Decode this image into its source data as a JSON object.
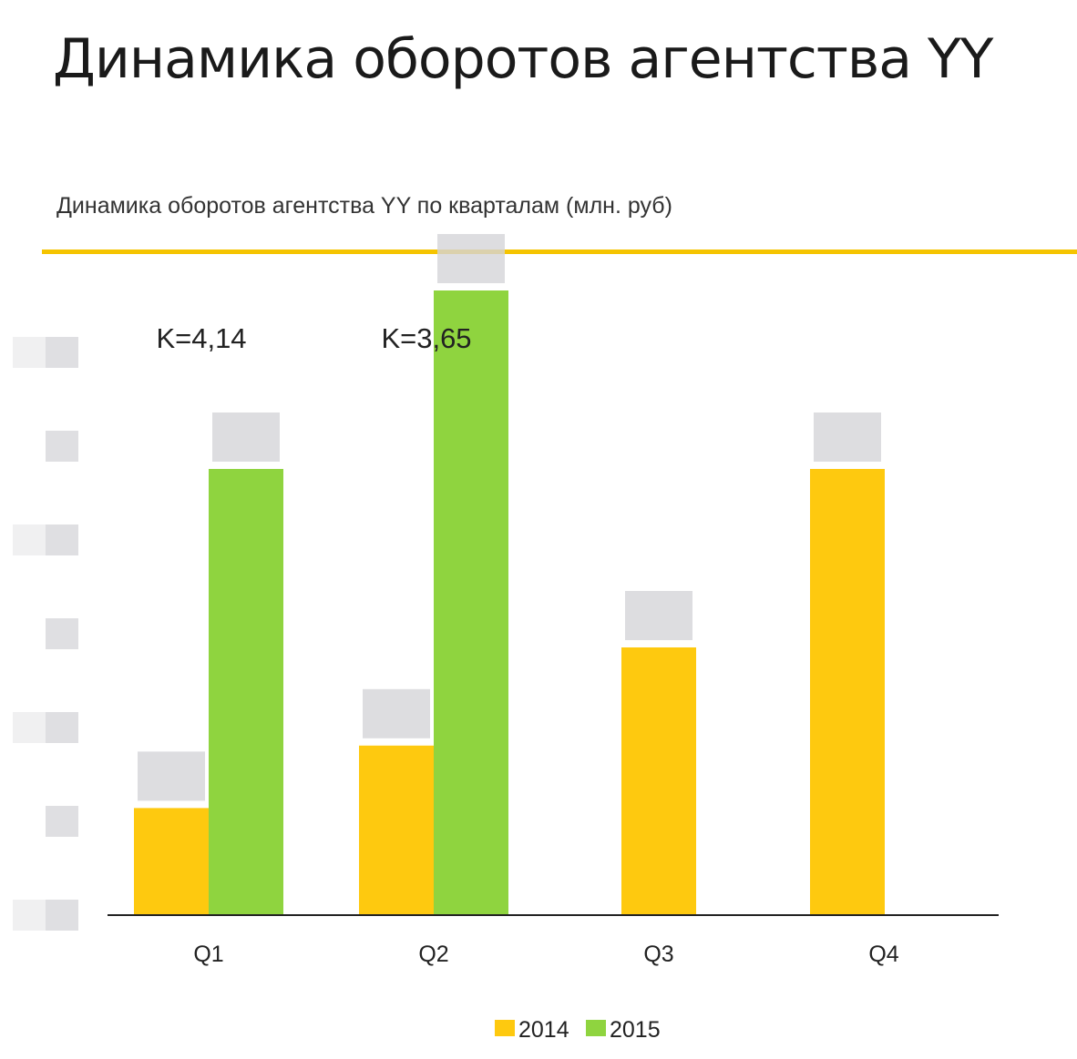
{
  "page": {
    "title": "Динамика оборотов агентства YY"
  },
  "colors": {
    "accent": "#f5c400",
    "series_2014": "#fec90f",
    "series_2015": "#8fd43f",
    "axis": "#222222",
    "blur": "#d4d4d8"
  },
  "chart_data": {
    "type": "bar",
    "title": "Динамика оборотов агентства YY по кварталам (млн. руб)",
    "categories": [
      "Q1",
      "Q2",
      "Q3",
      "Q4"
    ],
    "series": [
      {
        "name": "2014",
        "values": [
          0.6,
          0.95,
          1.5,
          2.5
        ]
      },
      {
        "name": "2015",
        "values": [
          2.5,
          3.5,
          null,
          null
        ]
      }
    ],
    "annotations": [
      {
        "category": "Q1",
        "text": "K=4,14"
      },
      {
        "category": "Q2",
        "text": "K=3,65"
      }
    ],
    "ylim": [
      0,
      4.5
    ],
    "y_tick_count": 7,
    "legend": "bottom-center",
    "grid": false
  }
}
